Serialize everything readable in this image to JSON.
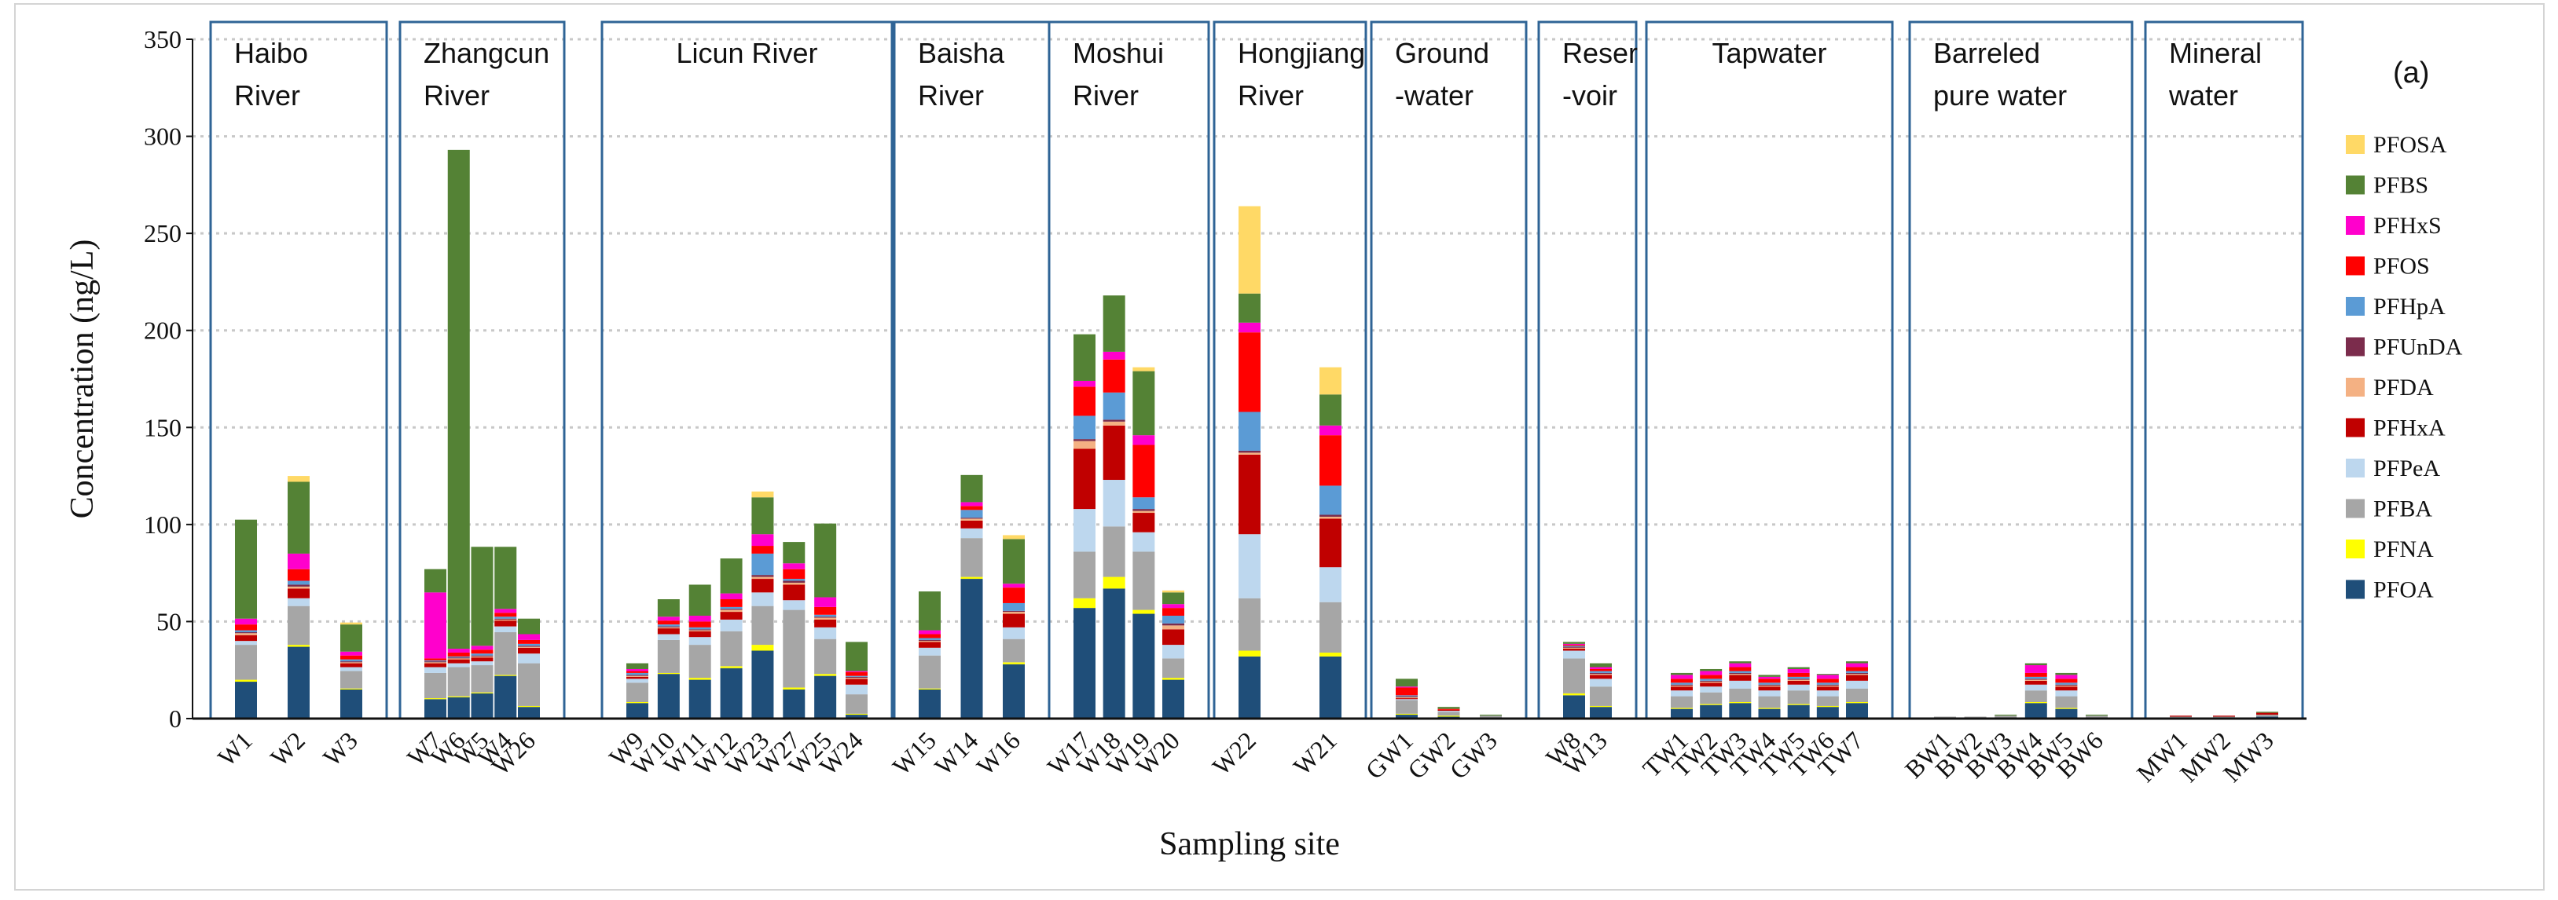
{
  "chart_data": {
    "type": "bar",
    "stacked": true,
    "panel_label": "(a)",
    "xlabel": "Sampling site",
    "ylabel": "Concentration (ng/L)",
    "ylim": [
      0,
      350
    ],
    "yticks": [
      0,
      50,
      100,
      150,
      200,
      250,
      300,
      350
    ],
    "grid": "dashed-horizontal",
    "legend_position": "right",
    "components": [
      "PFOA",
      "PFNA",
      "PFBA",
      "PFPeA",
      "PFHxA",
      "PFDA",
      "PFUnDA",
      "PFHpA",
      "PFOS",
      "PFHxS",
      "PFBS",
      "PFOSA"
    ],
    "legend_order": [
      "PFOSA",
      "PFBS",
      "PFHxS",
      "PFOS",
      "PFHpA",
      "PFUnDA",
      "PFDA",
      "PFHxA",
      "PFPeA",
      "PFBA",
      "PFNA",
      "PFOA"
    ],
    "colors": {
      "PFOA": "#1f4e79",
      "PFNA": "#ffff00",
      "PFBA": "#a6a6a6",
      "PFPeA": "#bdd7ee",
      "PFHxA": "#c00000",
      "PFDA": "#f4b183",
      "PFUnDA": "#7b2c4c",
      "PFHpA": "#5b9bd5",
      "PFOS": "#ff0000",
      "PFHxS": "#ff00cc",
      "PFBS": "#548235",
      "PFOSA": "#ffd966"
    },
    "groups": [
      {
        "label": [
          "Haibo",
          "River"
        ],
        "sites": [
          {
            "site": "W1",
            "values": [
              19,
              1,
              18,
              2,
              3,
              1,
              0.5,
              1,
              3,
              3,
              51,
              0
            ]
          },
          {
            "site": "W2",
            "values": [
              37,
              1,
              20,
              4,
              5,
              1,
              1,
              2,
              6,
              8,
              37,
              3
            ]
          },
          {
            "site": "W3",
            "values": [
              15,
              0.5,
              9,
              2,
              2,
              0.5,
              0.5,
              1,
              2,
              2,
              14,
              1
            ]
          }
        ]
      },
      {
        "label": [
          "Zhangcun",
          "River"
        ],
        "sites": [
          {
            "site": "W7",
            "values": [
              10,
              0.5,
              13,
              3,
              2,
              0.5,
              0.5,
              0.5,
              1,
              34,
              12,
              0
            ]
          },
          {
            "site": "W6",
            "values": [
              11,
              0.5,
              15,
              2,
              2,
              0.5,
              0.5,
              0.5,
              2,
              2,
              257,
              0
            ]
          },
          {
            "site": "W5",
            "values": [
              13,
              0.5,
              14,
              2,
              2,
              0.5,
              0.5,
              1,
              2,
              2,
              51,
              0
            ]
          },
          {
            "site": "W4",
            "values": [
              22,
              0.5,
              22,
              3,
              3,
              0.5,
              0.5,
              1,
              2,
              2,
              32,
              0
            ]
          },
          {
            "site": "W26",
            "values": [
              6,
              0.5,
              22,
              5,
              3,
              0.5,
              0.5,
              1,
              2,
              3,
              8,
              0
            ]
          }
        ]
      },
      {
        "label": [
          "Licun River"
        ],
        "sites": [
          {
            "site": "W9",
            "values": [
              8,
              0.5,
              10,
              2,
              1,
              0.5,
              0.5,
              1,
              1,
              1,
              3,
              0
            ]
          },
          {
            "site": "W10",
            "values": [
              23,
              0.5,
              17,
              3,
              3,
              0.5,
              0.5,
              1,
              2,
              2,
              9,
              0
            ]
          },
          {
            "site": "W11",
            "values": [
              20,
              1,
              17,
              4,
              3,
              0.5,
              0.5,
              1,
              3,
              3,
              16,
              0
            ]
          },
          {
            "site": "W12",
            "values": [
              26,
              1,
              18,
              6,
              4,
              1,
              0.5,
              1,
              4,
              3,
              18,
              0
            ]
          },
          {
            "site": "W23",
            "values": [
              35,
              3,
              20,
              7,
              7,
              1,
              1,
              11,
              4,
              6,
              19,
              3
            ]
          },
          {
            "site": "W27",
            "values": [
              15,
              1,
              40,
              5,
              8,
              1,
              1,
              1,
              5,
              3,
              11,
              0
            ]
          },
          {
            "site": "W25",
            "values": [
              22,
              1,
              18,
              6,
              4,
              1,
              0.5,
              1,
              4,
              5,
              38,
              0
            ]
          },
          {
            "site": "W24",
            "values": [
              2,
              0.5,
              10,
              5,
              3,
              0.5,
              0.5,
              0.5,
              2,
              0.5,
              15,
              0
            ]
          }
        ]
      },
      {
        "label": [
          "Baisha",
          "River"
        ],
        "sites": [
          {
            "site": "W15",
            "values": [
              15,
              0.5,
              17,
              4,
              3,
              0.5,
              0.5,
              1,
              2,
              2,
              20,
              0
            ]
          },
          {
            "site": "W14",
            "values": [
              72,
              1,
              20,
              5,
              4,
              1,
              0.5,
              4,
              2,
              2,
              14,
              0
            ]
          },
          {
            "site": "W16",
            "values": [
              28,
              1,
              12,
              6,
              7,
              1,
              0.5,
              4,
              8,
              2,
              23,
              2
            ]
          }
        ]
      },
      {
        "label": [
          "Moshui",
          "River"
        ],
        "sites": [
          {
            "site": "W17",
            "values": [
              57,
              5,
              24,
              22,
              31,
              4,
              1,
              12,
              15,
              3,
              24,
              0
            ]
          },
          {
            "site": "W18",
            "values": [
              67,
              6,
              26,
              24,
              28,
              2,
              1,
              14,
              17,
              4,
              29,
              0
            ]
          },
          {
            "site": "W19",
            "values": [
              54,
              2,
              30,
              10,
              10,
              1,
              1,
              6,
              27,
              5,
              33,
              2
            ]
          },
          {
            "site": "W20",
            "values": [
              20,
              1,
              10,
              7,
              8,
              2,
              1,
              4,
              4,
              2,
              6,
              1
            ]
          }
        ]
      },
      {
        "label": [
          "Hongjiang",
          "River"
        ],
        "sites": [
          {
            "site": "W22",
            "values": [
              32,
              3,
              27,
              33,
              41,
              1,
              1,
              20,
              41,
              5,
              15,
              45
            ]
          },
          {
            "site": "W21",
            "values": [
              32,
              2,
              26,
              18,
              25,
              1,
              1,
              15,
              26,
              5,
              16,
              14
            ]
          }
        ]
      },
      {
        "label": [
          "Ground",
          "-water"
        ],
        "sites": [
          {
            "site": "GW1",
            "values": [
              2,
              0.5,
              7,
              0.5,
              0.5,
              0.5,
              0.5,
              0.5,
              4,
              0.5,
              4,
              0
            ]
          },
          {
            "site": "GW2",
            "values": [
              1,
              0.5,
              2,
              0.5,
              0.5,
              0,
              0,
              0,
              0.5,
              0,
              1,
              0
            ]
          },
          {
            "site": "GW3",
            "values": [
              0.5,
              0,
              1,
              0,
              0,
              0,
              0,
              0,
              0,
              0,
              0.5,
              0
            ]
          }
        ]
      },
      {
        "label": [
          "Reser",
          "-voir"
        ],
        "sites": [
          {
            "site": "W8",
            "values": [
              12,
              1,
              18,
              4,
              1,
              0.5,
              0.5,
              0.5,
              0.5,
              0.5,
              1,
              0
            ]
          },
          {
            "site": "W13",
            "values": [
              6,
              0.5,
              10,
              4,
              2,
              0.5,
              0.5,
              1,
              1,
              1,
              2,
              0
            ]
          }
        ]
      },
      {
        "label": [
          "Tapwater"
        ],
        "sites": [
          {
            "site": "TW1",
            "values": [
              5,
              0.5,
              6,
              3,
              2,
              0.5,
              0.5,
              1,
              2,
              2,
              1,
              0
            ]
          },
          {
            "site": "TW2",
            "values": [
              7,
              0.5,
              6,
              3,
              2,
              0.5,
              0.5,
              1,
              2,
              2,
              1,
              0
            ]
          },
          {
            "site": "TW3",
            "values": [
              8,
              0.5,
              7,
              4,
              3,
              0.5,
              0.5,
              1,
              2,
              2,
              1,
              0
            ]
          },
          {
            "site": "TW4",
            "values": [
              5,
              0.5,
              6,
              3,
              2,
              0.5,
              0.5,
              1,
              2,
              1,
              1,
              0
            ]
          },
          {
            "site": "TW5",
            "values": [
              7,
              0.5,
              7,
              3,
              2,
              0.5,
              0.5,
              1,
              2,
              2,
              1,
              0
            ]
          },
          {
            "site": "TW6",
            "values": [
              6,
              0.5,
              5,
              3,
              2,
              0.5,
              0.5,
              1,
              2,
              2,
              0.5,
              0
            ]
          },
          {
            "site": "TW7",
            "values": [
              8,
              0.5,
              7,
              4,
              3,
              0.5,
              0.5,
              1,
              2,
              2,
              1,
              0
            ]
          }
        ]
      },
      {
        "label": [
          "Barreled",
          "pure water"
        ],
        "sites": [
          {
            "site": "BW1",
            "values": [
              0.5,
              0,
              0.5,
              0,
              0,
              0,
              0,
              0,
              0,
              0,
              0,
              0
            ]
          },
          {
            "site": "BW2",
            "values": [
              0.5,
              0,
              0.5,
              0,
              0,
              0,
              0,
              0,
              0,
              0,
              0,
              0
            ]
          },
          {
            "site": "BW3",
            "values": [
              0.5,
              0,
              1,
              0,
              0,
              0,
              0,
              0,
              0,
              0,
              0.5,
              0
            ]
          },
          {
            "site": "BW4",
            "values": [
              8,
              0.5,
              6,
              3,
              2,
              0.5,
              0.5,
              1,
              2,
              4,
              1,
              0
            ]
          },
          {
            "site": "BW5",
            "values": [
              5,
              0.5,
              6,
              3,
              2,
              0.5,
              0.5,
              1,
              2,
              2,
              1,
              0
            ]
          },
          {
            "site": "BW6",
            "values": [
              0.5,
              0,
              1,
              0,
              0,
              0,
              0,
              0,
              0,
              0,
              0.5,
              0
            ]
          }
        ]
      },
      {
        "label": [
          "Mineral",
          "water"
        ],
        "sites": [
          {
            "site": "MW1",
            "values": [
              0.5,
              0,
              0.5,
              0,
              0.5,
              0,
              0,
              0,
              0,
              0,
              0,
              0
            ]
          },
          {
            "site": "MW2",
            "values": [
              0.5,
              0,
              0.5,
              0,
              0.5,
              0,
              0,
              0,
              0,
              0,
              0,
              0
            ]
          },
          {
            "site": "MW3",
            "values": [
              1,
              0,
              1,
              0,
              1,
              0,
              0,
              0,
              0,
              0,
              0.5,
              0
            ]
          }
        ]
      }
    ]
  }
}
